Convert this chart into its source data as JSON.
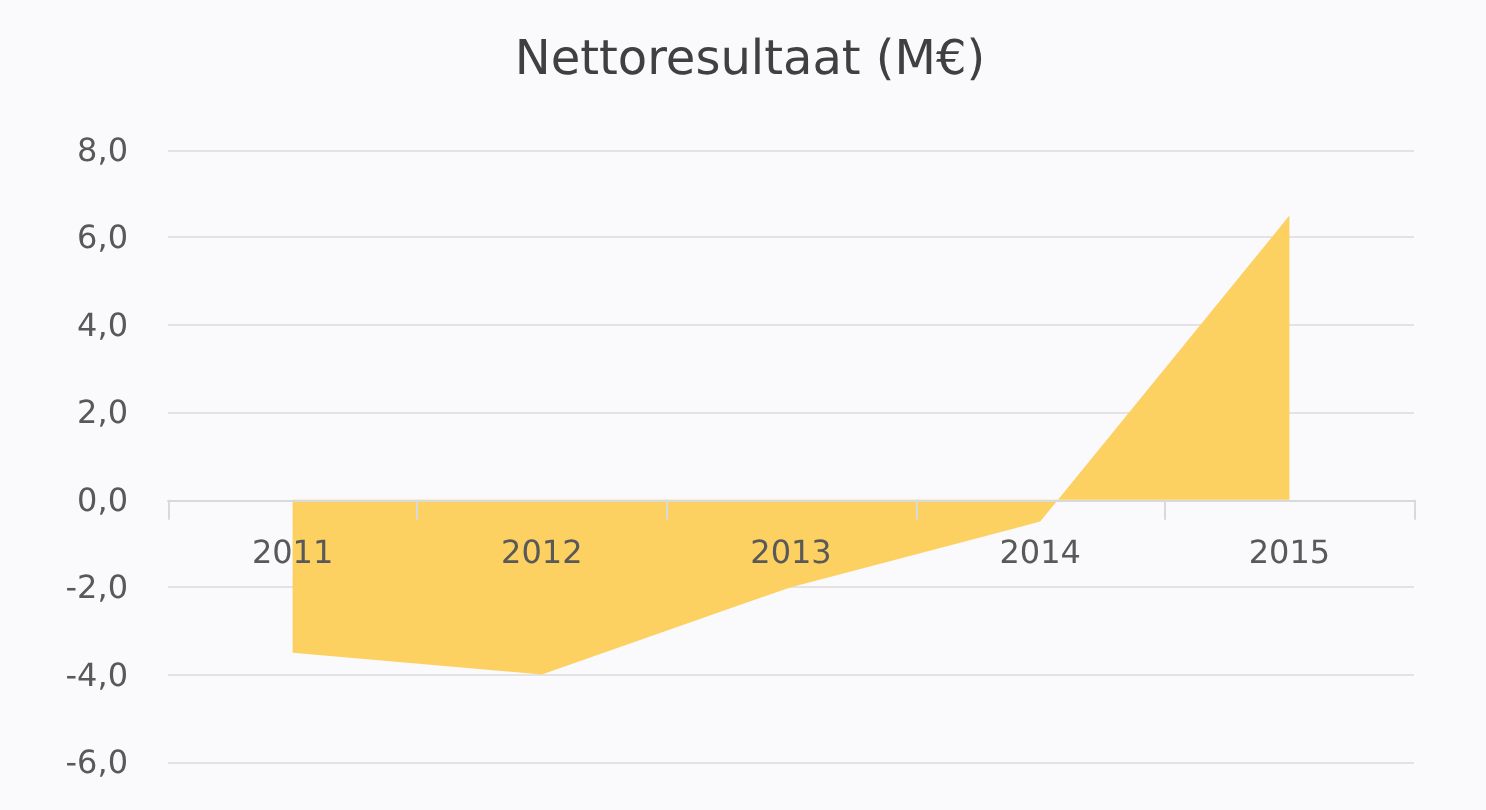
{
  "chart_data": {
    "type": "area",
    "title": "Nettoresultaat (M€)",
    "categories": [
      "2011",
      "2012",
      "2013",
      "2014",
      "2015"
    ],
    "values": [
      -3.5,
      -4.0,
      -2.0,
      -0.5,
      6.5
    ],
    "color": "#fdd062",
    "ylim": [
      -6,
      8
    ],
    "yticks": [
      {
        "value": -6,
        "label": "-6,0"
      },
      {
        "value": -4,
        "label": "-4,0"
      },
      {
        "value": -2,
        "label": "-2,0"
      },
      {
        "value": 0,
        "label": "0,0"
      },
      {
        "value": 2,
        "label": "2,0"
      },
      {
        "value": 4,
        "label": "4,0"
      },
      {
        "value": 6,
        "label": "6,0"
      },
      {
        "value": 8,
        "label": "8,0"
      }
    ],
    "grid": "y",
    "marker": "none"
  }
}
